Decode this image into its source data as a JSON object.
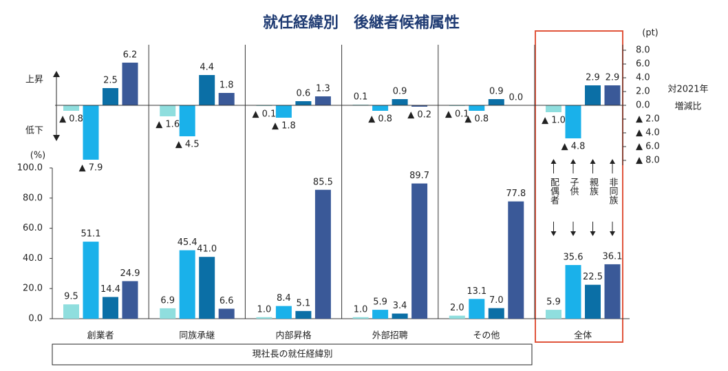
{
  "title": "就任経緯別　後継者候補属性",
  "chart_data": [
    {
      "type": "bar",
      "unit_label": "(pt)",
      "y_label_lines": [
        "対2021年",
        "増減比"
      ],
      "up_label": "上昇",
      "down_label": "低下",
      "ylim": [
        -8,
        8
      ],
      "yticks": [
        {
          "value": 8,
          "label": "8.0"
        },
        {
          "value": 6,
          "label": "6.0"
        },
        {
          "value": 4,
          "label": "4.0"
        },
        {
          "value": 2,
          "label": "2.0"
        },
        {
          "value": 0,
          "label": "0.0"
        },
        {
          "value": -2,
          "label": "▲ 2.0"
        },
        {
          "value": -4,
          "label": "▲ 4.0"
        },
        {
          "value": -6,
          "label": "▲ 6.0"
        },
        {
          "value": -8,
          "label": "▲ 8.0"
        }
      ],
      "series": [
        {
          "color": "#8fdede",
          "values": [
            -0.8,
            -1.6,
            -0.1,
            0.1,
            -0.1,
            -1.0
          ],
          "value_labels": [
            "▲ 0.8",
            "▲ 1.6",
            "▲ 0.1",
            "0.1",
            "▲ 0.1",
            "▲ 1.0"
          ]
        },
        {
          "color": "#1ab1ea",
          "values": [
            -7.9,
            -4.5,
            -1.8,
            -0.8,
            -0.8,
            -4.8
          ],
          "value_labels": [
            "▲ 7.9",
            "▲ 4.5",
            "▲ 1.8",
            "▲ 0.8",
            "▲ 0.8",
            "▲ 4.8"
          ]
        },
        {
          "color": "#0b6fa6",
          "values": [
            2.5,
            4.4,
            0.6,
            0.9,
            0.9,
            2.9
          ],
          "value_labels": [
            "2.5",
            "4.4",
            "0.6",
            "0.9",
            "0.9",
            "2.9"
          ]
        },
        {
          "color": "#3a5998",
          "values": [
            6.2,
            1.8,
            1.3,
            -0.2,
            0.0,
            2.9
          ],
          "value_labels": [
            "6.2",
            "1.8",
            "1.3",
            "▲ 0.2",
            "0.0",
            "2.9"
          ]
        }
      ]
    },
    {
      "type": "bar",
      "unit_label": "(%)",
      "xlabel": "現社長の就任経緯別",
      "categories": [
        "創業者",
        "同族承継",
        "内部昇格",
        "外部招聘",
        "その他",
        "全体"
      ],
      "ylim": [
        0,
        100
      ],
      "yticks": [
        {
          "value": 0,
          "label": "0.0"
        },
        {
          "value": 20,
          "label": "20.0"
        },
        {
          "value": 40,
          "label": "40.0"
        },
        {
          "value": 60,
          "label": "60.0"
        },
        {
          "value": 80,
          "label": "80.0"
        },
        {
          "value": 100,
          "label": "100.0"
        }
      ],
      "series": [
        {
          "name": "配偶者",
          "color": "#8fdede",
          "values": [
            9.5,
            6.9,
            1.0,
            1.0,
            2.0,
            5.9
          ],
          "value_labels": [
            "9.5",
            "6.9",
            "1.0",
            "1.0",
            "2.0",
            "5.9"
          ]
        },
        {
          "name": "子供",
          "color": "#1ab1ea",
          "values": [
            51.1,
            45.4,
            8.4,
            5.9,
            13.1,
            35.6
          ],
          "value_labels": [
            "51.1",
            "45.4",
            "8.4",
            "5.9",
            "13.1",
            "35.6"
          ]
        },
        {
          "name": "親族",
          "color": "#0b6fa6",
          "values": [
            14.4,
            41.0,
            5.1,
            3.4,
            7.0,
            22.5
          ],
          "value_labels": [
            "14.4",
            "41.0",
            "5.1",
            "3.4",
            "7.0",
            "22.5"
          ]
        },
        {
          "name": "非同族",
          "color": "#3a5998",
          "values": [
            24.9,
            6.6,
            85.5,
            89.7,
            77.8,
            36.1
          ],
          "value_labels": [
            "24.9",
            "6.6",
            "85.5",
            "89.7",
            "77.8",
            "36.1"
          ]
        }
      ]
    }
  ]
}
